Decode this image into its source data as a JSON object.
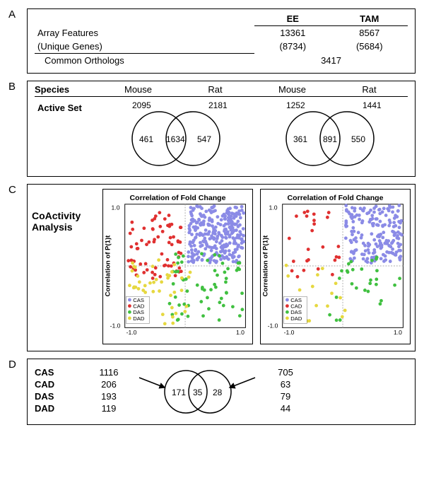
{
  "A": {
    "label": "A",
    "cols": [
      "EE",
      "TAM"
    ],
    "rows": [
      {
        "label": "Array Features",
        "vals": [
          "13361",
          "8567"
        ]
      },
      {
        "label": "(Unique Genes)",
        "vals": [
          "(8734)",
          "(5684)"
        ]
      }
    ],
    "common_label": "Common Orthologs",
    "common_value": "3417"
  },
  "B": {
    "label": "B",
    "species_label": "Species",
    "active_label": "Active Set",
    "species": [
      "Mouse",
      "Rat"
    ],
    "venn1": {
      "leftTotal": "2095",
      "rightTotal": "2181",
      "leftOnly": "461",
      "inter": "1634",
      "rightOnly": "547"
    },
    "venn2": {
      "leftTotal": "1252",
      "rightTotal": "1441",
      "leftOnly": "361",
      "inter": "891",
      "rightOnly": "550"
    }
  },
  "C": {
    "label": "C",
    "side_label": "CoActivity Analysis",
    "chart_title": "Correlation of Fold Change",
    "xlabel": "Correlation of Fold Change",
    "ylabel": "Correlation of P(1)t",
    "xlim": [
      -1.0,
      1.0
    ],
    "ylim": [
      -1.0,
      1.0
    ],
    "xticks": [
      "-1.0",
      "1.0"
    ],
    "yticks": [
      "-1.0",
      "1.0"
    ],
    "legend": [
      "CAS",
      "CAD",
      "DAS",
      "DAD"
    ],
    "colors": {
      "CAS": "#8b8be6",
      "CAD": "#e03030",
      "DAS": "#40c040",
      "DAD": "#e6d840"
    },
    "marker_radius": 2.5,
    "background": "#ffffff",
    "gridline_color": "#aaaaaa",
    "left_points_seed": 1116,
    "right_points_seed": 705
  },
  "D": {
    "label": "D",
    "rows": [
      {
        "label": "CAS",
        "left": "1116",
        "right": "705"
      },
      {
        "label": "CAD",
        "left": "206",
        "right": "63"
      },
      {
        "label": "DAS",
        "left": "193",
        "right": "79"
      },
      {
        "label": "DAD",
        "left": "119",
        "right": "44"
      }
    ],
    "venn": {
      "leftOnly": "171",
      "inter": "35",
      "rightOnly": "28"
    }
  }
}
